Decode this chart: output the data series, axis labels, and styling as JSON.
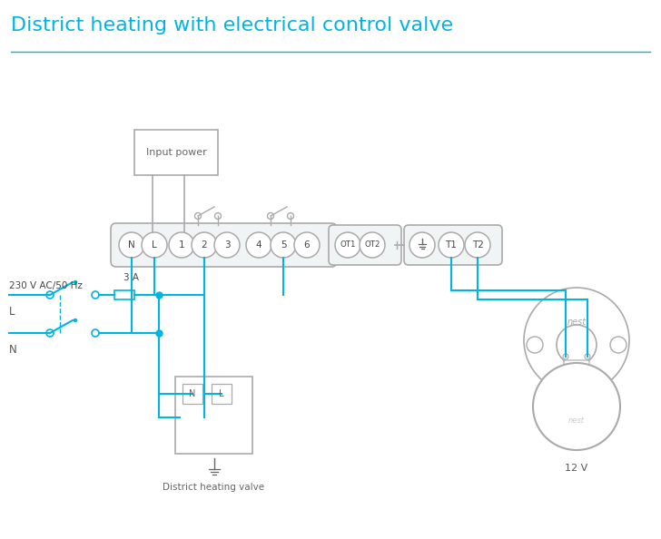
{
  "title": "District heating with electrical control valve",
  "title_color": "#00b5e2",
  "title_fontsize": 16,
  "bg_color": "#ffffff",
  "line_color": "#00b5e2",
  "gray": "#aaaaaa",
  "dark_gray": "#666666",
  "input_power_label": "Input power",
  "valve_label": "District heating valve",
  "nest_label": "12 V",
  "voltage_label": "230 V AC/50 Hz",
  "fuse_label": "3 A",
  "L_label": "L",
  "N_label": "N"
}
